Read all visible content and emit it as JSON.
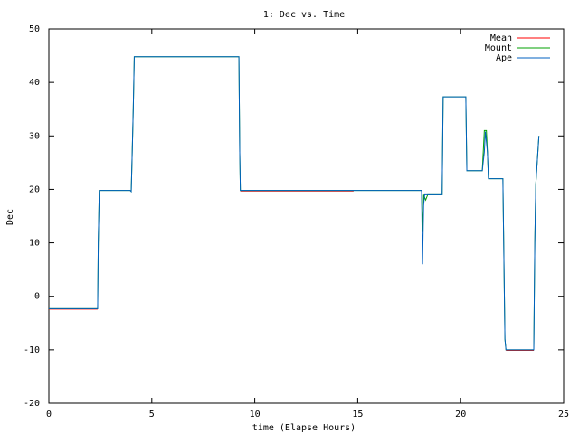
{
  "chart_data": {
    "type": "line",
    "title": "1: Dec vs. Time",
    "xlabel": "time (Elapse Hours)",
    "ylabel": "Dec",
    "xlim": [
      0,
      25
    ],
    "ylim": [
      -20,
      50
    ],
    "xticks": [
      0,
      5,
      10,
      15,
      20,
      25
    ],
    "yticks": [
      -20,
      -10,
      0,
      10,
      20,
      30,
      40,
      50
    ],
    "grid": false,
    "legend": "upper right",
    "series": [
      {
        "name": "Mean",
        "color": "#ff0000",
        "x": [
          0,
          2.37,
          2.4,
          9.3,
          14.8,
          14.85,
          22.2,
          23.55
        ],
        "values": [
          -2.4,
          -2.4,
          null,
          19.7,
          19.7,
          null,
          -10.1,
          -10.1
        ]
      },
      {
        "name": "Mount",
        "color": "#00a000",
        "x": [
          0,
          2.37,
          2.4,
          2.45,
          3.95,
          4.0,
          4.05,
          4.1,
          4.15,
          9.23,
          9.27,
          9.3,
          18.1,
          18.15,
          18.2,
          18.3,
          18.4,
          19.1,
          19.15,
          20.25,
          20.3,
          21.05,
          21.15,
          21.25,
          21.3,
          21.35,
          22.05,
          22.15,
          22.2,
          23.55,
          23.6,
          23.65,
          23.8
        ],
        "values": [
          -2.3,
          -2.3,
          10,
          19.8,
          19.8,
          19.6,
          27,
          35,
          44.8,
          44.8,
          27,
          19.8,
          19.8,
          12,
          19,
          18,
          19,
          19,
          37.3,
          37.3,
          23.5,
          23.5,
          31,
          31,
          27,
          22,
          22,
          -8,
          -10,
          -10,
          10,
          21,
          30
        ]
      },
      {
        "name": "Ape",
        "color": "#0060c0",
        "x": [
          0,
          2.37,
          2.4,
          2.45,
          3.95,
          4.0,
          4.05,
          4.1,
          4.15,
          9.23,
          9.27,
          9.3,
          18.1,
          18.15,
          18.2,
          18.25,
          18.35,
          19.1,
          19.15,
          20.25,
          20.3,
          21.05,
          21.15,
          21.2,
          21.3,
          21.35,
          22.05,
          22.15,
          22.2,
          23.55,
          23.6,
          23.65,
          23.8
        ],
        "values": [
          -2.3,
          -2.3,
          10,
          19.8,
          19.8,
          19.6,
          27,
          35,
          44.8,
          44.8,
          27,
          19.8,
          19.8,
          6,
          17,
          19,
          19,
          19,
          37.3,
          37.3,
          23.5,
          23.5,
          27,
          30.8,
          27,
          22,
          22,
          -8,
          -10,
          -10,
          10,
          21,
          30
        ]
      }
    ]
  }
}
